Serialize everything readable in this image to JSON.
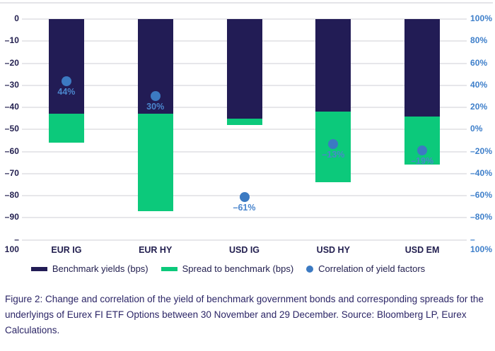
{
  "figure": {
    "caption": "Figure 2: Change and correlation of the yield of benchmark government bonds and corresponding spreads for the underlyings of Eurex FI ETF Options between 30 November and 29 December. Source: Bloomberg LP, Eurex Calculations."
  },
  "colors": {
    "benchmark_bar": "#221c55",
    "spread_bar": "#0cc97b",
    "correlation_dot": "#3c7ac2",
    "dot_label_text": "#4b86cd",
    "left_axis_text": "#232050",
    "right_axis_text": "#3e7fca",
    "category_text": "#232050",
    "legend_text": "#232050",
    "gridline": "#e7e7ea"
  },
  "chart_data": {
    "type": "bar",
    "title": "",
    "categories": [
      "EUR IG",
      "EUR HY",
      "USD IG",
      "USD HY",
      "USD EM"
    ],
    "series": [
      {
        "name": "Benchmark yields (bps)",
        "type": "bar",
        "stack": "yield",
        "color": "#221c55",
        "values": [
          -43,
          -43,
          -45,
          -42,
          -44
        ]
      },
      {
        "name": "Spread to benchmark (bps)",
        "type": "bar",
        "stack": "yield",
        "color": "#0cc97b",
        "values": [
          -13,
          -44,
          -3,
          -32,
          -22
        ]
      },
      {
        "name": "Correlation of yield factors",
        "type": "scatter",
        "axis": "right",
        "color": "#3c7ac2",
        "values": [
          44,
          30,
          -61,
          -13,
          -19
        ],
        "labels": [
          "44%",
          "30%",
          "–61%",
          "–13%",
          "–19%"
        ]
      }
    ],
    "left_axis": {
      "min": -100,
      "max": 0,
      "step": 10,
      "ticks": [
        "0",
        "–10",
        "–20",
        "–30",
        "–40",
        "–50",
        "–60",
        "–70",
        "–80",
        "–90",
        "–100"
      ]
    },
    "right_axis": {
      "min": -100,
      "max": 100,
      "step": 20,
      "ticks": [
        "100%",
        "80%",
        "60%",
        "40%",
        "20%",
        "0%",
        "–20%",
        "–40%",
        "–60%",
        "–80%",
        "–100%"
      ]
    },
    "grid": true,
    "legend_position": "bottom"
  }
}
